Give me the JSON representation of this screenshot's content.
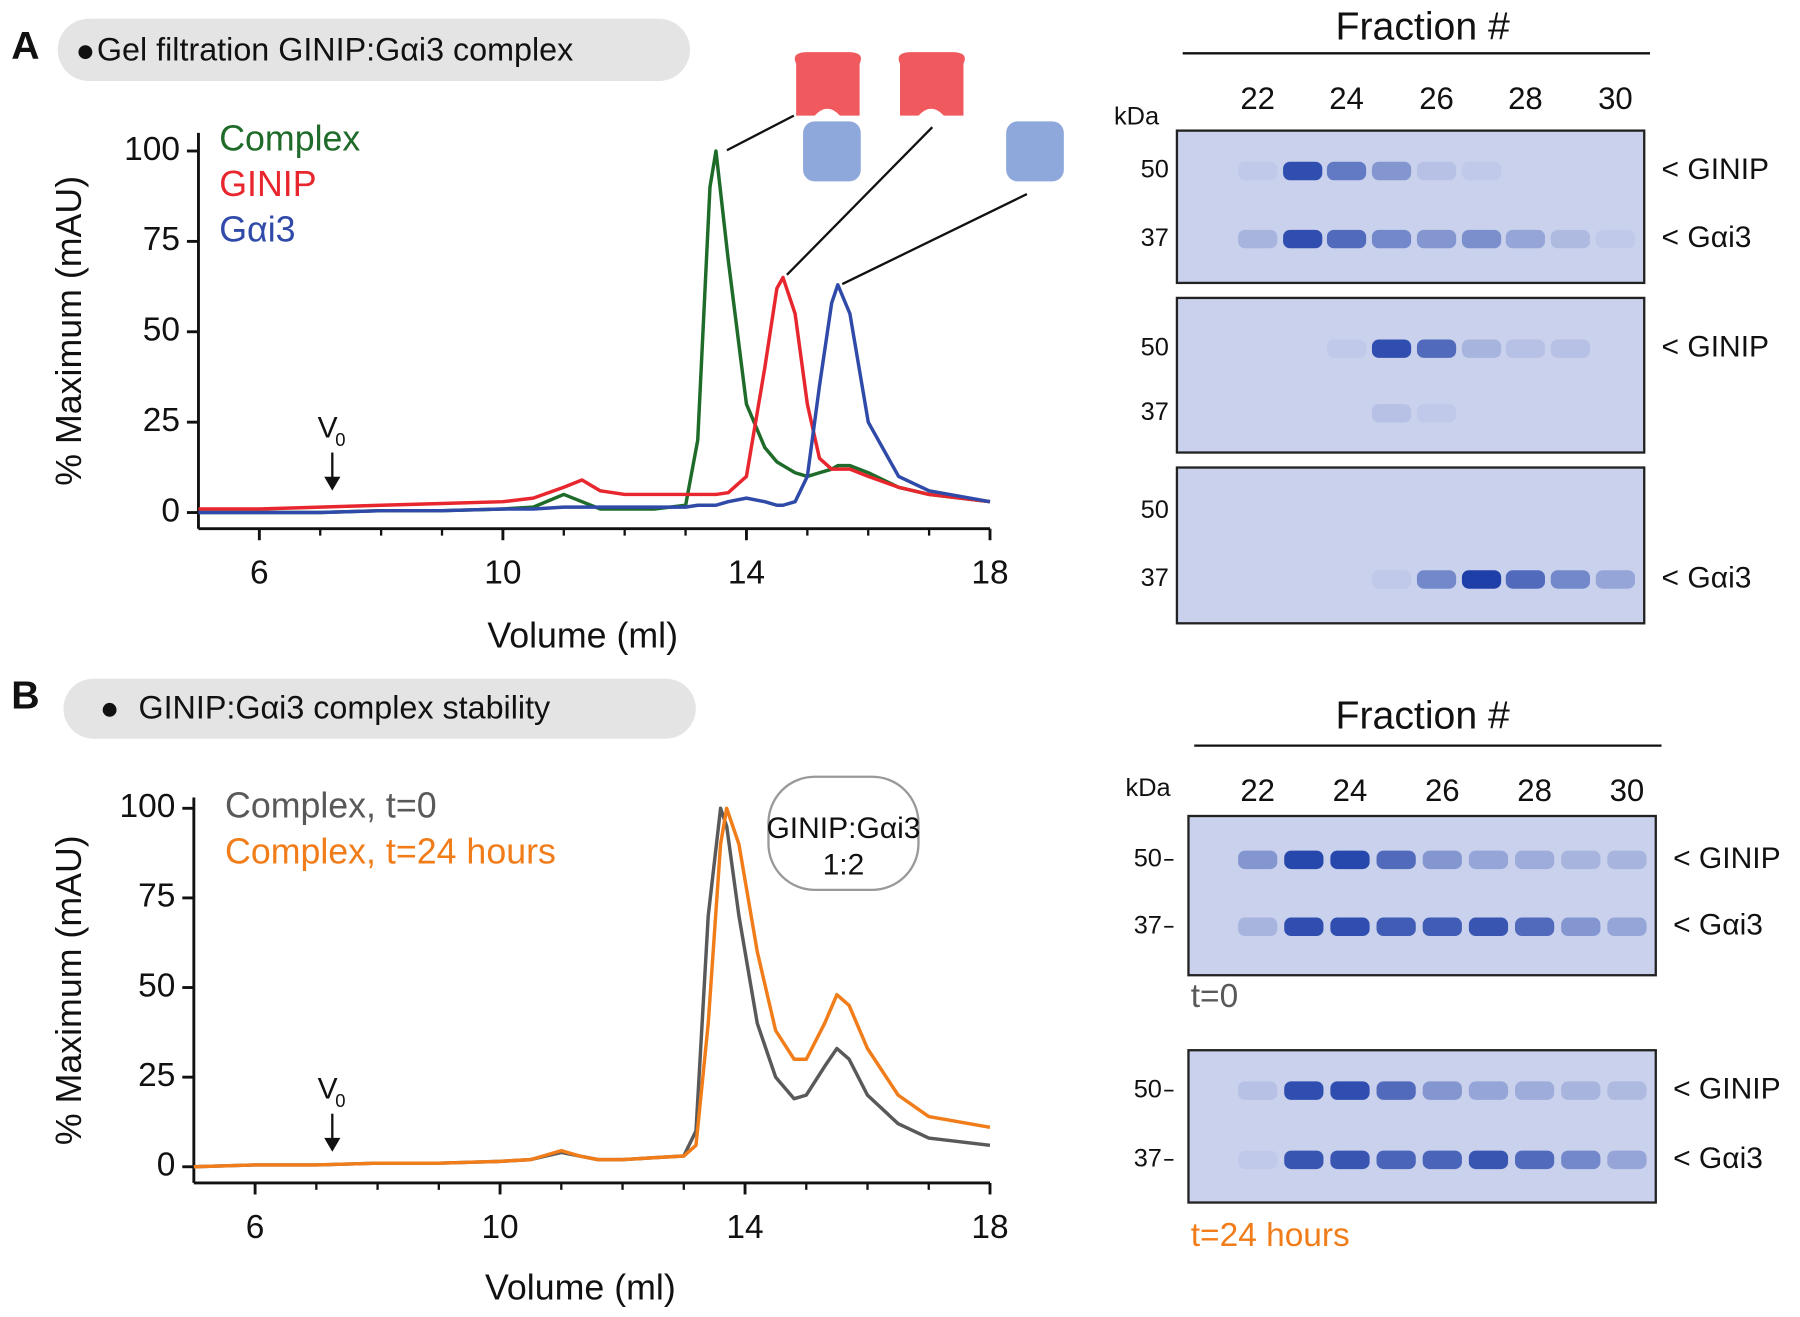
{
  "chart_data": [
    {
      "type": "line",
      "panel": "A",
      "title": "Gel filtration GINIP:Gαi3 complex",
      "xlabel": "Volume (ml)",
      "ylabel": "% Maximum (mAU)",
      "void_volume": [
        "V",
        "0"
      ],
      "x": [
        5,
        6,
        7,
        8,
        9,
        10,
        10.5,
        11,
        11.3,
        11.6,
        12,
        12.5,
        13,
        13.2,
        13.4,
        13.5,
        13.7,
        14,
        14.3,
        14.5,
        14.6,
        14.8,
        15,
        15.2,
        15.4,
        15.5,
        15.7,
        16,
        16.5,
        17,
        18
      ],
      "series": [
        {
          "name": "Complex",
          "color": "#1e6b2a",
          "values": [
            0,
            0,
            0,
            0.5,
            0.5,
            1,
            1.5,
            5,
            3,
            1,
            1,
            1,
            2,
            20,
            90,
            100,
            70,
            30,
            18,
            14,
            13,
            11,
            10,
            11,
            12,
            13,
            13,
            11,
            7,
            5,
            3
          ]
        },
        {
          "name": "GINIP",
          "color": "#e8262d",
          "values": [
            1,
            1,
            1.5,
            2,
            2.5,
            3,
            4,
            7,
            9,
            6,
            5,
            5,
            5,
            5,
            5,
            5,
            5.5,
            10,
            40,
            62,
            65,
            55,
            30,
            15,
            12,
            12,
            12,
            10,
            7,
            5,
            3
          ]
        },
        {
          "name": "Gαi3",
          "color": "#2f4aa8",
          "values": [
            0,
            0,
            0,
            0.5,
            0.5,
            1,
            1,
            1.5,
            1.5,
            1.5,
            1.5,
            1.5,
            1.5,
            2,
            2,
            2,
            3,
            4,
            3,
            2,
            2,
            3,
            10,
            35,
            58,
            63,
            55,
            25,
            10,
            6,
            3
          ]
        }
      ],
      "xlim": [
        5,
        18
      ],
      "xticks": [
        6,
        10,
        14,
        18
      ],
      "xticks_minor": [
        7,
        8,
        9,
        11,
        12,
        13,
        15,
        16,
        17
      ],
      "ylim": [
        0,
        105
      ],
      "yticks": [
        0,
        25,
        50,
        75,
        100
      ],
      "legend": "upper left"
    },
    {
      "type": "line",
      "panel": "B",
      "title": "GINIP:Gαi3 complex stability",
      "xlabel": "Volume (ml)",
      "ylabel": "% Maximum (mAU)",
      "void_volume": [
        "V",
        "0"
      ],
      "annotation": [
        "GINIP:Gαi3",
        "1:2"
      ],
      "x": [
        5,
        6,
        7,
        8,
        9,
        10,
        10.5,
        11,
        11.3,
        11.6,
        12,
        12.5,
        13,
        13.2,
        13.4,
        13.6,
        13.7,
        13.9,
        14.2,
        14.5,
        14.8,
        15,
        15.3,
        15.5,
        15.7,
        16,
        16.5,
        17,
        18
      ],
      "series": [
        {
          "name": "Complex, t=0",
          "color": "#59595b",
          "values": [
            0,
            0.5,
            0.5,
            1,
            1,
            1.5,
            2,
            4,
            3,
            2,
            2,
            2.5,
            3,
            10,
            70,
            100,
            95,
            70,
            40,
            25,
            19,
            20,
            28,
            33,
            30,
            20,
            12,
            8,
            6
          ]
        },
        {
          "name": "Complex, t=24 hours",
          "color": "#f07d1a",
          "values": [
            0,
            0.5,
            0.5,
            1,
            1,
            1.5,
            2,
            4.5,
            3,
            2,
            2,
            2.5,
            3,
            6,
            40,
            90,
            100,
            90,
            60,
            38,
            30,
            30,
            40,
            48,
            45,
            33,
            20,
            14,
            11
          ]
        }
      ],
      "xlim": [
        5,
        18
      ],
      "xticks": [
        6,
        10,
        14,
        18
      ],
      "xticks_minor": [
        7,
        8,
        9,
        11,
        12,
        13,
        15,
        16,
        17
      ],
      "ylim": [
        0,
        103
      ],
      "yticks": [
        0,
        25,
        50,
        75,
        100
      ],
      "legend": "upper left"
    }
  ],
  "gels": [
    {
      "header": "Fraction #",
      "unit": "kDa",
      "fractions": [
        "22",
        "24",
        "26",
        "28",
        "30"
      ],
      "panels": [
        {
          "markers": [
            "50",
            "37"
          ],
          "labels": [
            "< GINIP",
            "< Gαi3"
          ]
        },
        {
          "markers": [
            "50",
            "37"
          ],
          "labels": [
            "< GINIP",
            null
          ]
        },
        {
          "markers": [
            "50",
            "37"
          ],
          "labels": [
            null,
            "< Gαi3"
          ]
        }
      ]
    },
    {
      "header": "Fraction #",
      "unit": "kDa",
      "fractions": [
        "22",
        "24",
        "26",
        "28",
        "30"
      ],
      "panels": [
        {
          "markers": [
            "50",
            "37"
          ],
          "labels": [
            "< GINIP",
            "< Gαi3"
          ],
          "caption": "t=0",
          "caption_color": "#59595b"
        },
        {
          "markers": [
            "50",
            "37"
          ],
          "labels": [
            "< GINIP",
            "< Gαi3"
          ],
          "caption": "t=24 hours",
          "caption_color": "#f07d1a"
        }
      ]
    }
  ]
}
